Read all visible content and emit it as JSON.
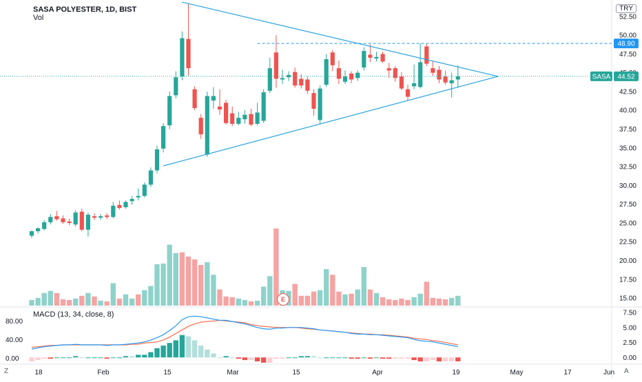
{
  "header": {
    "title": "SASA POLYESTER, 1D, BIST",
    "volume_label": "Vol",
    "currency": "TRY"
  },
  "macd": {
    "label": "MACD (13, 34, close, 8)"
  },
  "corners": {
    "left": "Z",
    "right": "A"
  },
  "event_marker": {
    "letter": "E"
  },
  "colors": {
    "up": "#26a69a",
    "down": "#ef5350",
    "up_vol": "#8fd2cb",
    "down_vol": "#f5a3a3",
    "line": "#29a3df",
    "macd_line": "#2196f3",
    "signal_line": "#ff6d4a",
    "resistance": "#2196f3"
  },
  "chart_data": [
    {
      "type": "candlestick",
      "title": "SASA POLYESTER, 1D, BIST",
      "x_tick_labels": [
        "18",
        "Feb",
        "15",
        "Mar",
        "15",
        "Apr",
        "19",
        "May",
        "17",
        "Jun"
      ],
      "y_axis": {
        "ticks": [
          "52.50",
          "50.00",
          "47.50",
          "45.00",
          "42.50",
          "40.00",
          "37.50",
          "35.00",
          "32.50",
          "30.00",
          "27.50",
          "25.00",
          "22.50",
          "20.00",
          "17.50",
          "15.00"
        ],
        "ylim": [
          14.0,
          54.5
        ]
      },
      "price_labels": {
        "resistance": "48.90",
        "symbol": "SASA",
        "last": "44.52"
      },
      "resistance_level": 48.9,
      "last_price": 44.52,
      "candles": [
        {
          "o": 23.3,
          "h": 24.0,
          "l": 23.0,
          "c": 23.9
        },
        {
          "o": 23.9,
          "h": 24.4,
          "l": 23.6,
          "c": 24.3
        },
        {
          "o": 24.2,
          "h": 25.4,
          "l": 24.0,
          "c": 25.1
        },
        {
          "o": 25.1,
          "h": 26.2,
          "l": 24.8,
          "c": 25.8
        },
        {
          "o": 25.9,
          "h": 26.6,
          "l": 25.3,
          "c": 25.5
        },
        {
          "o": 25.6,
          "h": 26.0,
          "l": 24.9,
          "c": 25.1
        },
        {
          "o": 25.2,
          "h": 25.6,
          "l": 24.7,
          "c": 25.0
        },
        {
          "o": 24.8,
          "h": 26.7,
          "l": 24.5,
          "c": 26.4
        },
        {
          "o": 26.5,
          "h": 26.9,
          "l": 23.9,
          "c": 24.1
        },
        {
          "o": 24.1,
          "h": 26.4,
          "l": 23.2,
          "c": 26.1
        },
        {
          "o": 25.9,
          "h": 26.3,
          "l": 25.4,
          "c": 25.7
        },
        {
          "o": 25.7,
          "h": 26.2,
          "l": 25.4,
          "c": 25.9
        },
        {
          "o": 26.0,
          "h": 26.3,
          "l": 25.5,
          "c": 25.8
        },
        {
          "o": 25.8,
          "h": 27.8,
          "l": 25.6,
          "c": 27.3
        },
        {
          "o": 27.4,
          "h": 28.0,
          "l": 26.8,
          "c": 27.0
        },
        {
          "o": 27.1,
          "h": 28.0,
          "l": 26.9,
          "c": 27.8
        },
        {
          "o": 27.9,
          "h": 28.6,
          "l": 27.4,
          "c": 28.2
        },
        {
          "o": 28.4,
          "h": 29.6,
          "l": 28.0,
          "c": 28.6
        },
        {
          "o": 28.6,
          "h": 30.4,
          "l": 28.4,
          "c": 30.1
        },
        {
          "o": 30.1,
          "h": 32.4,
          "l": 29.8,
          "c": 32.0
        },
        {
          "o": 32.0,
          "h": 35.3,
          "l": 31.6,
          "c": 34.8
        },
        {
          "o": 34.9,
          "h": 38.3,
          "l": 34.4,
          "c": 37.9
        },
        {
          "o": 38.0,
          "h": 42.5,
          "l": 37.5,
          "c": 41.9
        },
        {
          "o": 42.0,
          "h": 45.2,
          "l": 41.6,
          "c": 44.4
        },
        {
          "o": 44.5,
          "h": 50.5,
          "l": 44.0,
          "c": 49.6
        },
        {
          "o": 49.5,
          "h": 54.2,
          "l": 44.6,
          "c": 45.6
        },
        {
          "o": 42.8,
          "h": 43.2,
          "l": 40.0,
          "c": 40.3
        },
        {
          "o": 39.0,
          "h": 39.5,
          "l": 36.2,
          "c": 36.8
        },
        {
          "o": 34.1,
          "h": 42.5,
          "l": 33.8,
          "c": 41.9
        },
        {
          "o": 41.3,
          "h": 43.1,
          "l": 40.2,
          "c": 41.9
        },
        {
          "o": 40.5,
          "h": 42.8,
          "l": 39.4,
          "c": 40.1
        },
        {
          "o": 41.0,
          "h": 41.4,
          "l": 38.1,
          "c": 38.3
        },
        {
          "o": 39.6,
          "h": 40.5,
          "l": 37.9,
          "c": 38.2
        },
        {
          "o": 38.2,
          "h": 39.8,
          "l": 38.0,
          "c": 39.0
        },
        {
          "o": 38.8,
          "h": 40.0,
          "l": 38.2,
          "c": 39.4
        },
        {
          "o": 39.5,
          "h": 40.2,
          "l": 37.9,
          "c": 38.1
        },
        {
          "o": 38.2,
          "h": 41.0,
          "l": 38.0,
          "c": 39.7
        },
        {
          "o": 38.6,
          "h": 42.8,
          "l": 38.3,
          "c": 42.4
        },
        {
          "o": 42.6,
          "h": 47.0,
          "l": 42.3,
          "c": 45.6
        },
        {
          "o": 47.7,
          "h": 50.0,
          "l": 43.0,
          "c": 44.2
        },
        {
          "o": 44.1,
          "h": 45.4,
          "l": 43.5,
          "c": 44.3
        },
        {
          "o": 44.4,
          "h": 45.2,
          "l": 43.9,
          "c": 44.7
        },
        {
          "o": 45.1,
          "h": 45.7,
          "l": 43.0,
          "c": 43.3
        },
        {
          "o": 44.2,
          "h": 44.8,
          "l": 42.9,
          "c": 43.3
        },
        {
          "o": 44.1,
          "h": 44.5,
          "l": 42.2,
          "c": 42.6
        },
        {
          "o": 42.3,
          "h": 42.8,
          "l": 39.3,
          "c": 40.2
        },
        {
          "o": 38.7,
          "h": 43.3,
          "l": 38.2,
          "c": 42.9
        },
        {
          "o": 43.4,
          "h": 47.5,
          "l": 43.1,
          "c": 46.8
        },
        {
          "o": 47.7,
          "h": 48.0,
          "l": 45.2,
          "c": 46.0
        },
        {
          "o": 45.6,
          "h": 46.6,
          "l": 43.5,
          "c": 44.2
        },
        {
          "o": 43.8,
          "h": 45.3,
          "l": 43.5,
          "c": 44.5
        },
        {
          "o": 44.9,
          "h": 45.2,
          "l": 43.6,
          "c": 44.1
        },
        {
          "o": 44.3,
          "h": 45.3,
          "l": 43.9,
          "c": 45.0
        },
        {
          "o": 45.7,
          "h": 48.4,
          "l": 45.3,
          "c": 47.9
        },
        {
          "o": 47.4,
          "h": 48.8,
          "l": 46.4,
          "c": 47.0
        },
        {
          "o": 46.9,
          "h": 47.8,
          "l": 46.5,
          "c": 47.1
        },
        {
          "o": 47.5,
          "h": 47.8,
          "l": 46.3,
          "c": 46.5
        },
        {
          "o": 45.6,
          "h": 46.3,
          "l": 44.3,
          "c": 45.3
        },
        {
          "o": 45.6,
          "h": 45.9,
          "l": 43.8,
          "c": 44.3
        },
        {
          "o": 44.5,
          "h": 45.1,
          "l": 42.7,
          "c": 42.9
        },
        {
          "o": 42.8,
          "h": 43.4,
          "l": 41.3,
          "c": 41.8
        },
        {
          "o": 43.2,
          "h": 46.1,
          "l": 42.8,
          "c": 43.6
        },
        {
          "o": 43.1,
          "h": 48.9,
          "l": 42.9,
          "c": 46.4
        },
        {
          "o": 48.5,
          "h": 48.9,
          "l": 45.9,
          "c": 46.2
        },
        {
          "o": 45.6,
          "h": 46.5,
          "l": 44.6,
          "c": 45.0
        },
        {
          "o": 45.4,
          "h": 45.9,
          "l": 43.6,
          "c": 44.1
        },
        {
          "o": 44.5,
          "h": 45.3,
          "l": 43.4,
          "c": 43.7
        },
        {
          "o": 43.6,
          "h": 45.0,
          "l": 41.7,
          "c": 44.0
        },
        {
          "o": 44.1,
          "h": 46.0,
          "l": 43.0,
          "c": 44.52
        }
      ],
      "volume": [
        {
          "v": 0.8,
          "up": true
        },
        {
          "v": 1.1,
          "up": true
        },
        {
          "v": 1.8,
          "up": true
        },
        {
          "v": 2.1,
          "up": true
        },
        {
          "v": 1.8,
          "up": false
        },
        {
          "v": 0.9,
          "up": false
        },
        {
          "v": 0.8,
          "up": false
        },
        {
          "v": 1.0,
          "up": true
        },
        {
          "v": 1.4,
          "up": false
        },
        {
          "v": 1.8,
          "up": true
        },
        {
          "v": 1.3,
          "up": false
        },
        {
          "v": 0.7,
          "up": true
        },
        {
          "v": 0.6,
          "up": false
        },
        {
          "v": 3.2,
          "up": true
        },
        {
          "v": 1.0,
          "up": false
        },
        {
          "v": 1.6,
          "up": true
        },
        {
          "v": 1.0,
          "up": true
        },
        {
          "v": 1.6,
          "up": false
        },
        {
          "v": 2.2,
          "up": true
        },
        {
          "v": 2.8,
          "up": true
        },
        {
          "v": 5.9,
          "up": true
        },
        {
          "v": 6.0,
          "up": true
        },
        {
          "v": 8.7,
          "up": true
        },
        {
          "v": 7.5,
          "up": true
        },
        {
          "v": 7.6,
          "up": false
        },
        {
          "v": 7.0,
          "up": false
        },
        {
          "v": 6.6,
          "up": false
        },
        {
          "v": 5.8,
          "up": false
        },
        {
          "v": 6.2,
          "up": true
        },
        {
          "v": 4.4,
          "up": true
        },
        {
          "v": 2.3,
          "up": false
        },
        {
          "v": 1.3,
          "up": false
        },
        {
          "v": 1.2,
          "up": false
        },
        {
          "v": 1.0,
          "up": true
        },
        {
          "v": 0.8,
          "up": true
        },
        {
          "v": 0.6,
          "up": false
        },
        {
          "v": 0.7,
          "up": true
        },
        {
          "v": 2.7,
          "up": true
        },
        {
          "v": 4.2,
          "up": true
        },
        {
          "v": 11.0,
          "up": false
        },
        {
          "v": 2.2,
          "up": true
        },
        {
          "v": 2.1,
          "up": true
        },
        {
          "v": 3.1,
          "up": false
        },
        {
          "v": 1.4,
          "up": false
        },
        {
          "v": 1.4,
          "up": false
        },
        {
          "v": 2.0,
          "up": false
        },
        {
          "v": 2.2,
          "up": true
        },
        {
          "v": 5.2,
          "up": true
        },
        {
          "v": 4.4,
          "up": false
        },
        {
          "v": 2.0,
          "up": false
        },
        {
          "v": 1.6,
          "up": true
        },
        {
          "v": 1.7,
          "up": false
        },
        {
          "v": 2.3,
          "up": true
        },
        {
          "v": 5.5,
          "up": true
        },
        {
          "v": 2.3,
          "up": false
        },
        {
          "v": 1.8,
          "up": true
        },
        {
          "v": 1.2,
          "up": false
        },
        {
          "v": 0.9,
          "up": false
        },
        {
          "v": 0.8,
          "up": false
        },
        {
          "v": 1.0,
          "up": false
        },
        {
          "v": 0.8,
          "up": false
        },
        {
          "v": 1.2,
          "up": true
        },
        {
          "v": 1.7,
          "up": true
        },
        {
          "v": 3.4,
          "up": false
        },
        {
          "v": 1.1,
          "up": false
        },
        {
          "v": 1.0,
          "up": false
        },
        {
          "v": 0.9,
          "up": false
        },
        {
          "v": 1.1,
          "up": true
        },
        {
          "v": 1.4,
          "up": true
        }
      ],
      "trendlines": [
        {
          "name": "upper",
          "from": {
            "bar": 24,
            "price": 54.4
          },
          "to": {
            "bar": 74.4,
            "price": 44.52
          }
        },
        {
          "name": "lower",
          "from": {
            "bar": 21,
            "price": 32.6
          },
          "to": {
            "bar": 74.4,
            "price": 44.52
          }
        }
      ],
      "projection_bars": 20
    },
    {
      "type": "line",
      "title": "MACD (13, 34, close, 8)",
      "y_axis": {
        "ticks": [
          "7.50",
          "5.00",
          "2.50",
          "0.00"
        ],
        "ylim": [
          -1.0,
          8.2
        ]
      },
      "left_axis_labels": [
        "80.00",
        "40.00",
        "0.00"
      ],
      "series": [
        {
          "name": "MACD",
          "color": "#2196f3",
          "values": [
            1.4,
            1.6,
            1.8,
            1.9,
            2.0,
            2.1,
            2.1,
            2.2,
            2.1,
            2.1,
            2.1,
            2.1,
            2.0,
            2.1,
            2.1,
            2.2,
            2.3,
            2.4,
            2.6,
            2.9,
            3.3,
            3.8,
            4.5,
            5.3,
            6.3,
            6.8,
            6.9,
            6.8,
            6.6,
            6.4,
            6.2,
            6.2,
            6.0,
            5.8,
            5.6,
            5.3,
            5.0,
            4.8,
            4.7,
            4.9,
            4.9,
            5.0,
            5.0,
            5.0,
            4.9,
            4.8,
            4.6,
            4.5,
            4.4,
            4.3,
            4.2,
            4.0,
            3.9,
            3.9,
            3.8,
            3.8,
            3.7,
            3.6,
            3.5,
            3.4,
            3.3,
            3.0,
            2.8,
            2.7,
            2.6,
            2.4,
            2.2,
            2.0,
            1.8
          ]
        },
        {
          "name": "Signal",
          "color": "#ff6d4a",
          "values": [
            1.7,
            1.8,
            1.9,
            2.0,
            2.0,
            2.1,
            2.1,
            2.1,
            2.1,
            2.1,
            2.1,
            2.1,
            2.1,
            2.1,
            2.1,
            2.1,
            2.2,
            2.2,
            2.4,
            2.5,
            2.6,
            2.9,
            3.4,
            4.0,
            4.6,
            5.2,
            5.6,
            5.9,
            6.0,
            6.1,
            6.2,
            6.1,
            6.0,
            5.9,
            5.8,
            5.5,
            5.3,
            5.2,
            5.1,
            5.0,
            5.0,
            5.0,
            5.0,
            4.9,
            4.8,
            4.7,
            4.6,
            4.5,
            4.4,
            4.3,
            4.2,
            4.1,
            4.0,
            3.9,
            3.9,
            3.8,
            3.8,
            3.7,
            3.6,
            3.5,
            3.4,
            3.2,
            3.1,
            3.0,
            2.8,
            2.7,
            2.5,
            2.3,
            2.1
          ]
        }
      ]
    }
  ]
}
